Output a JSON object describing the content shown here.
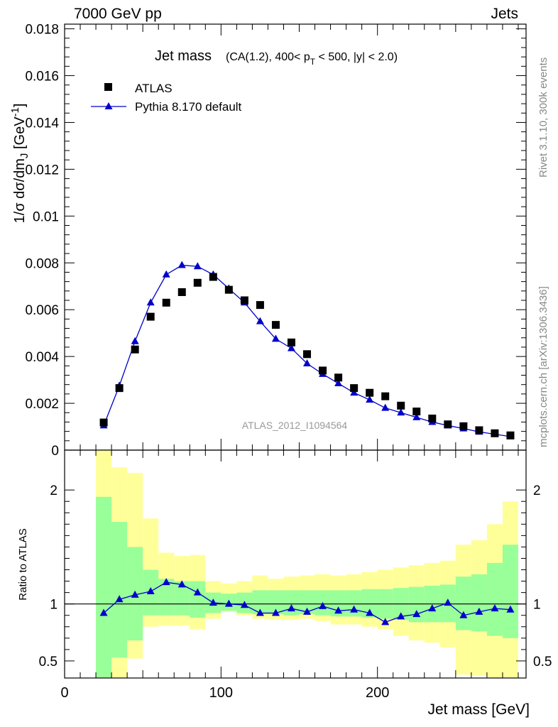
{
  "header": {
    "left": "7000 GeV pp",
    "right": "Jets"
  },
  "side": {
    "rivet": "Rivet 3.1.10,  300k events",
    "mcplots": "mcplots.cern.ch [arXiv:1306.3436]"
  },
  "chart_data": [
    {
      "type": "scatter",
      "title": "Jet mass (CA(1.2), 400< pT < 500, |y| < 2.0)",
      "title_main": "Jet mass",
      "title_sub_pre": "(CA(1.2), 400< p",
      "title_sub_subscript": "T",
      "title_sub_post": " < 500, |y| < 2.0)",
      "ylabel": "1/σ dσ/dm_J [GeV^-1]",
      "ylabel_text": "1/σ dσ/dm",
      "ylabel_sub": "J",
      "ylabel_unit": " [GeV",
      "ylabel_sup": "-1",
      "ylabel_close": "]",
      "watermark": "ATLAS_2012_I1094564",
      "xlim": [
        0,
        295
      ],
      "ylim": [
        0,
        0.0182
      ],
      "yticks": [
        0,
        0.002,
        0.004,
        0.006,
        0.008,
        0.01,
        0.012,
        0.014,
        0.016,
        0.018
      ],
      "ytick_labels": [
        "0",
        "0.002",
        "0.004",
        "0.006",
        "0.008",
        "0.01",
        "0.012",
        "0.014",
        "0.016",
        "0.018"
      ],
      "legend": {
        "position": "top-left",
        "entries": [
          "ATLAS",
          "Pythia 8.170 default"
        ]
      },
      "colors": {
        "data": "#000000",
        "mc": "#0000cc"
      },
      "series": [
        {
          "name": "ATLAS",
          "x": [
            25,
            35,
            45,
            55,
            65,
            75,
            85,
            95,
            105,
            115,
            125,
            135,
            145,
            155,
            165,
            175,
            185,
            195,
            205,
            215,
            225,
            235,
            245,
            255,
            265,
            275,
            285
          ],
          "y": [
            0.00118,
            0.00265,
            0.0043,
            0.0057,
            0.0063,
            0.00675,
            0.00715,
            0.0074,
            0.00685,
            0.0064,
            0.0062,
            0.00535,
            0.0046,
            0.0041,
            0.0034,
            0.0031,
            0.00265,
            0.00245,
            0.0023,
            0.0019,
            0.00165,
            0.00135,
            0.0011,
            0.00102,
            0.00085,
            0.00072,
            0.00063
          ]
        },
        {
          "name": "Pythia 8.170 default",
          "x": [
            25,
            35,
            45,
            55,
            65,
            75,
            85,
            95,
            105,
            115,
            125,
            135,
            145,
            155,
            165,
            175,
            185,
            195,
            205,
            215,
            225,
            235,
            245,
            255,
            265,
            275,
            285
          ],
          "y": [
            0.00105,
            0.00275,
            0.00465,
            0.0063,
            0.0075,
            0.0079,
            0.00785,
            0.0075,
            0.0069,
            0.0063,
            0.0055,
            0.00475,
            0.00435,
            0.0037,
            0.00325,
            0.00285,
            0.00245,
            0.00215,
            0.0018,
            0.0016,
            0.0014,
            0.0012,
            0.00105,
            0.00092,
            0.00078,
            0.00068,
            0.00058
          ]
        }
      ]
    },
    {
      "type": "scatter",
      "ylabel": "Ratio to ATLAS",
      "xlabel": "Jet mass [GeV]",
      "xlim": [
        0,
        295
      ],
      "ylim": [
        0.35,
        2.35
      ],
      "xticks": [
        0,
        100,
        200
      ],
      "xtick_labels": [
        "0",
        "100",
        "200"
      ],
      "yticks": [
        0.5,
        1,
        2
      ],
      "ytick_labels": [
        "0.5",
        "1",
        "2"
      ],
      "colors": {
        "band_outer": "#ffff99",
        "band_inner": "#99ff99",
        "mc": "#0000cc"
      },
      "bins": [
        20,
        30,
        40,
        50,
        60,
        70,
        80,
        90,
        100,
        110,
        120,
        130,
        140,
        150,
        160,
        170,
        180,
        190,
        200,
        210,
        220,
        230,
        240,
        250,
        260,
        270,
        280,
        290
      ],
      "band_outer": {
        "lo": [
          0.35,
          0.35,
          0.52,
          0.8,
          0.81,
          0.81,
          0.78,
          0.87,
          0.93,
          0.9,
          0.87,
          0.86,
          0.86,
          0.87,
          0.85,
          0.82,
          0.82,
          0.8,
          0.78,
          0.72,
          0.68,
          0.66,
          0.62,
          0.38,
          0.37,
          0.35,
          0.35
        ],
        "hi": [
          2.35,
          2.2,
          2.15,
          1.75,
          1.45,
          1.42,
          1.43,
          1.2,
          1.18,
          1.2,
          1.25,
          1.22,
          1.24,
          1.25,
          1.26,
          1.25,
          1.26,
          1.28,
          1.3,
          1.32,
          1.34,
          1.36,
          1.38,
          1.52,
          1.56,
          1.7,
          1.9
        ]
      },
      "band_inner": {
        "lo": [
          0.35,
          0.53,
          0.68,
          0.9,
          0.9,
          0.9,
          0.88,
          0.92,
          0.94,
          0.92,
          0.91,
          0.91,
          0.9,
          0.91,
          0.9,
          0.89,
          0.89,
          0.88,
          0.87,
          0.86,
          0.84,
          0.84,
          0.84,
          0.77,
          0.76,
          0.72,
          0.7
        ],
        "hi": [
          1.94,
          1.72,
          1.5,
          1.3,
          1.22,
          1.2,
          1.2,
          1.1,
          1.09,
          1.1,
          1.12,
          1.12,
          1.12,
          1.12,
          1.12,
          1.12,
          1.12,
          1.13,
          1.13,
          1.14,
          1.15,
          1.16,
          1.17,
          1.24,
          1.26,
          1.36,
          1.52
        ]
      },
      "series": [
        {
          "name": "Pythia 8.170 default",
          "x": [
            25,
            35,
            45,
            55,
            65,
            75,
            85,
            95,
            105,
            115,
            125,
            135,
            145,
            155,
            165,
            175,
            185,
            195,
            205,
            215,
            225,
            235,
            245,
            255,
            265,
            275,
            285
          ],
          "y": [
            0.92,
            1.04,
            1.08,
            1.11,
            1.19,
            1.17,
            1.1,
            1.01,
            1.0,
            0.99,
            0.92,
            0.92,
            0.96,
            0.93,
            0.98,
            0.94,
            0.95,
            0.92,
            0.84,
            0.89,
            0.91,
            0.96,
            1.01,
            0.9,
            0.93,
            0.96,
            0.95
          ]
        }
      ]
    }
  ]
}
